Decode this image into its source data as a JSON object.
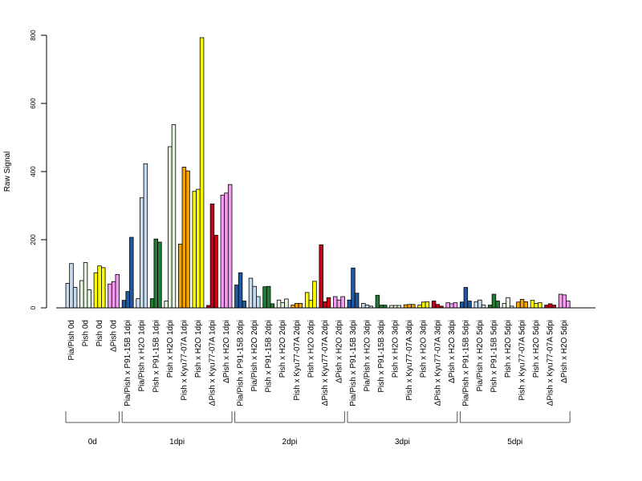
{
  "chart_data": {
    "type": "bar",
    "ylabel": "Raw Signal",
    "ylim": [
      0,
      800
    ],
    "yticks": [
      0,
      200,
      400,
      600,
      800
    ],
    "grid": false,
    "legend": "none",
    "categories": [
      {
        "label": "Pia/Pish 0d",
        "color": "#c6dbef",
        "values": [
          72,
          130,
          60
        ]
      },
      {
        "label": "Pish 0d",
        "color": "#e5f5e0",
        "values": [
          80,
          133,
          53
        ]
      },
      {
        "label": "Pish 0d",
        "color": "#ffff00",
        "values": [
          103,
          123,
          118
        ]
      },
      {
        "label": "ΔPish 0d",
        "color": "#f49cf1",
        "values": [
          70,
          77,
          98
        ]
      },
      {
        "label": "Pia/Pish x P91-15B 1dpi",
        "color": "#2159a0",
        "values": [
          22,
          48,
          207
        ]
      },
      {
        "label": "Pia/Pish x H2O 1dpi",
        "color": "#c6dbef",
        "values": [
          27,
          323,
          423
        ]
      },
      {
        "label": "Pish x P91-15B 1dpi",
        "color": "#237b35",
        "values": [
          27,
          202,
          193
        ]
      },
      {
        "label": "Pish x H2O 1dpi",
        "color": "#e5f5e0",
        "values": [
          20,
          473,
          538
        ]
      },
      {
        "label": "Pish x Kyu77-07A 1dpi",
        "color": "#f5a300",
        "values": [
          187,
          413,
          402
        ]
      },
      {
        "label": "Pish x H2O 1dpi",
        "color": "#ffff00",
        "values": [
          342,
          348,
          793
        ]
      },
      {
        "label": "ΔPish x Kyu77-07A 1dpi",
        "color": "#c90016",
        "values": [
          7,
          305,
          213
        ]
      },
      {
        "label": "ΔPish x H2O 1dpi",
        "color": "#f49cf1",
        "values": [
          331,
          337,
          362
        ]
      },
      {
        "label": "Pia/Pish x P91-15B 2dpi",
        "color": "#2159a0",
        "values": [
          67,
          103,
          20
        ]
      },
      {
        "label": "Pia/Pish x H2O 2dpi",
        "color": "#c6dbef",
        "values": [
          87,
          63,
          33
        ]
      },
      {
        "label": "Pish x P91-15B 2dpi",
        "color": "#237b35",
        "values": [
          62,
          63,
          12
        ]
      },
      {
        "label": "Pish x H2O 2dpi",
        "color": "#e5f5e0",
        "values": [
          23,
          15,
          26
        ]
      },
      {
        "label": "Pish x Kyu77-07A 2dpi",
        "color": "#f5a300",
        "values": [
          8,
          13,
          13
        ]
      },
      {
        "label": "Pish x H2O 2dpi",
        "color": "#ffff00",
        "values": [
          45,
          22,
          78
        ]
      },
      {
        "label": "ΔPish x Kyu77-07A 2dpi",
        "color": "#c90016",
        "values": [
          185,
          18,
          30
        ]
      },
      {
        "label": "ΔPish x H2O 2dpi",
        "color": "#f49cf1",
        "values": [
          33,
          23,
          33
        ]
      },
      {
        "label": "Pia/Pish x P91-15B 3dpi",
        "color": "#2159a0",
        "values": [
          23,
          117,
          43
        ]
      },
      {
        "label": "Pia/Pish x H2O 3dpi",
        "color": "#c6dbef",
        "values": [
          13,
          8,
          5
        ]
      },
      {
        "label": "Pish x P91-15B 3dpi",
        "color": "#237b35",
        "values": [
          37,
          8,
          8
        ]
      },
      {
        "label": "Pish x H2O 3dpi",
        "color": "#e5f5e0",
        "values": [
          7,
          7,
          7
        ]
      },
      {
        "label": "Pish x Kyu77-07A 3dpi",
        "color": "#f5a300",
        "values": [
          9,
          10,
          10
        ]
      },
      {
        "label": "Pish x H2O 3dpi",
        "color": "#ffff00",
        "values": [
          8,
          17,
          18
        ]
      },
      {
        "label": "ΔPish x Kyu77-07A 3dpi",
        "color": "#c90016",
        "values": [
          20,
          10,
          5
        ]
      },
      {
        "label": "ΔPish x H2O 3dpi",
        "color": "#f49cf1",
        "values": [
          15,
          12,
          15
        ]
      },
      {
        "label": "Pia/Pish x P91-15B 5dpi",
        "color": "#2159a0",
        "values": [
          17,
          60,
          20
        ]
      },
      {
        "label": "Pia/Pish x H2O 5dpi",
        "color": "#c6dbef",
        "values": [
          18,
          23,
          8
        ]
      },
      {
        "label": "Pish x P91-15B 5dpi",
        "color": "#237b35",
        "values": [
          8,
          40,
          20
        ]
      },
      {
        "label": "Pish x H2O 5dpi",
        "color": "#e5f5e0",
        "values": [
          13,
          30,
          5
        ]
      },
      {
        "label": "Pish x Kyu77-07A 5dpi",
        "color": "#f5a300",
        "values": [
          17,
          25,
          18
        ]
      },
      {
        "label": "Pish x H2O 5dpi",
        "color": "#ffff00",
        "values": [
          22,
          13,
          15
        ]
      },
      {
        "label": "ΔPish x Kyu77-07A 5dpi",
        "color": "#c90016",
        "values": [
          8,
          12,
          8
        ]
      },
      {
        "label": "ΔPish x H2O 5dpi",
        "color": "#f49cf1",
        "values": [
          40,
          38,
          20
        ]
      }
    ],
    "groups": [
      {
        "label": "0d",
        "start": 0,
        "end": 3
      },
      {
        "label": "1dpi",
        "start": 4,
        "end": 11
      },
      {
        "label": "2dpi",
        "start": 12,
        "end": 19
      },
      {
        "label": "3dpi",
        "start": 20,
        "end": 27
      },
      {
        "label": "5dpi",
        "start": 28,
        "end": 35
      }
    ]
  }
}
